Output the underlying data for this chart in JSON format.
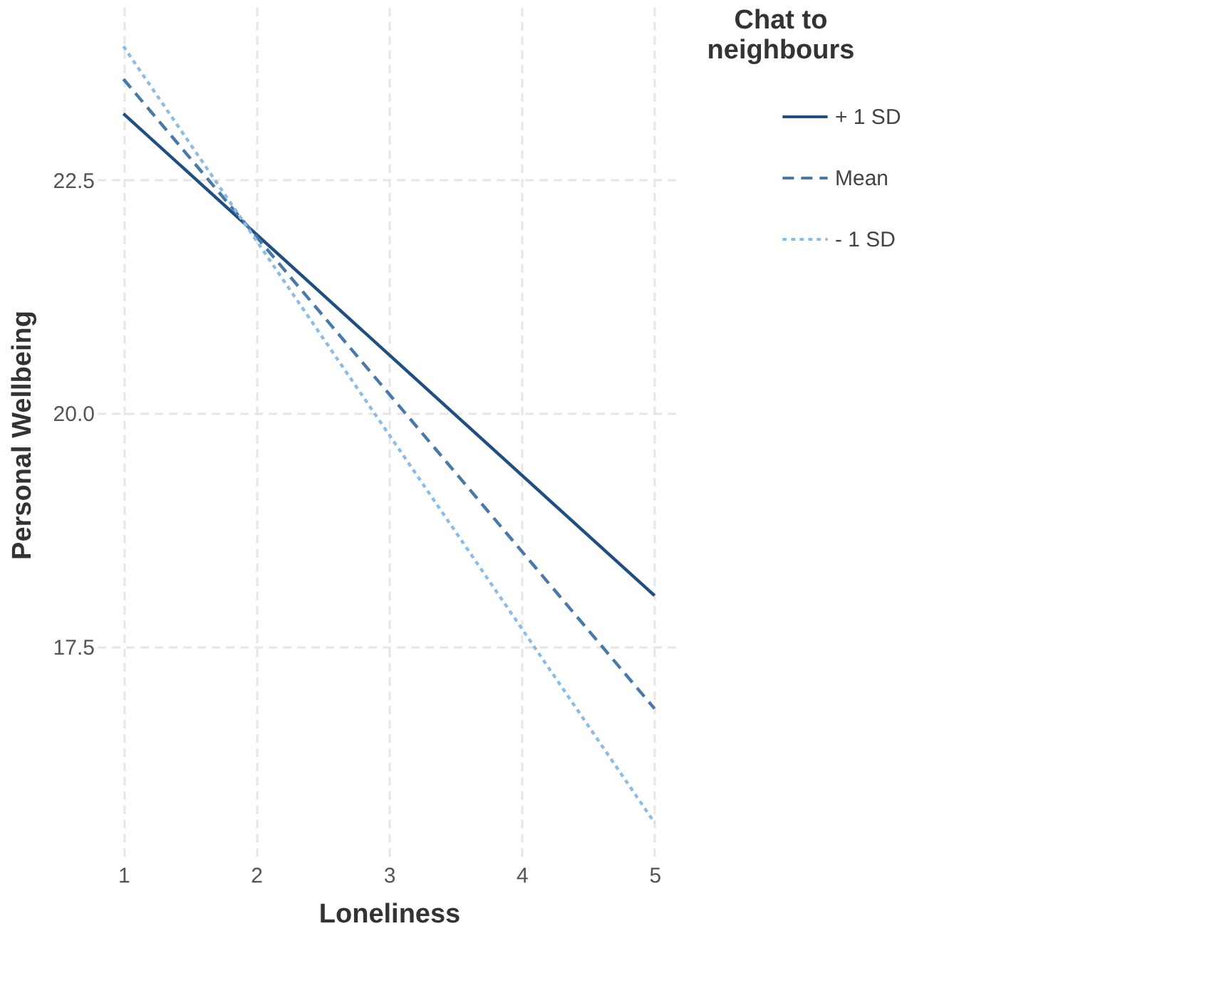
{
  "chart_data": {
    "type": "line",
    "xlabel": "Loneliness",
    "ylabel": "Personal Wellbeing",
    "legend_title": "Chat to\nneighbours",
    "x": [
      1,
      5
    ],
    "series": [
      {
        "name": "+ 1 SD",
        "color": "#1f4e80",
        "line_style": "solid",
        "values": [
          23.21,
          18.05
        ]
      },
      {
        "name": "Mean",
        "color": "#4a78aa",
        "line_style": "dashed",
        "values": [
          23.58,
          16.84
        ]
      },
      {
        "name": "- 1 SD",
        "color": "#8cbde8",
        "line_style": "dotted",
        "values": [
          23.93,
          15.62
        ]
      }
    ],
    "xlim": [
      0.8,
      5.2
    ],
    "xticks": [
      1,
      2,
      3,
      4,
      5
    ],
    "ylim": [
      15.2,
      24.35
    ],
    "yticks": [
      {
        "value": 17.5,
        "label": "17.5"
      },
      {
        "value": 20,
        "label": "20.0"
      },
      {
        "value": 22.5,
        "label": "22.5"
      }
    ],
    "grid": true,
    "legend": "right",
    "marker": "none"
  }
}
